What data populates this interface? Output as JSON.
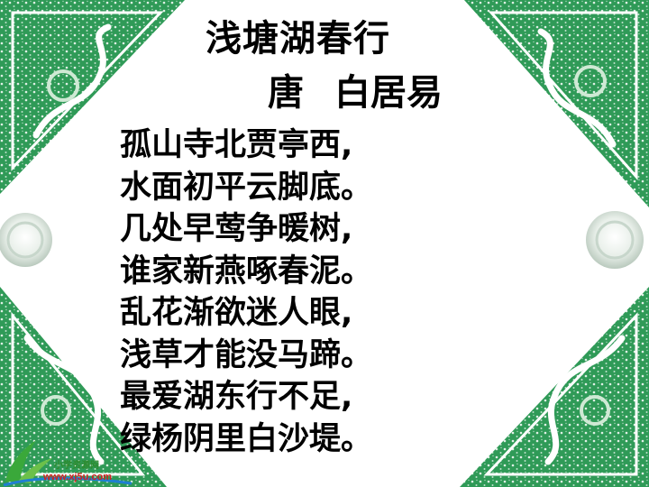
{
  "poem": {
    "title": "浅塘湖春行",
    "dynasty": "唐",
    "author": "白居易",
    "lines": [
      "孤山寺北贾亭西,",
      "水面初平云脚底。",
      "几处早莺争暖树,",
      "谁家新燕啄春泥。",
      "乱花渐欲迷人眼,",
      "浅草才能没马蹄。",
      "最爱湖东行不足,",
      "绿杨阴里白沙堤。"
    ]
  },
  "watermark": {
    "site_name": "小学资源网",
    "url": "www.xj5u.com"
  },
  "colors": {
    "ornament_green": "#2f9a57",
    "ornament_light": "#cfe9d4",
    "text": "#000000",
    "watermark_green": "#2e8b2e",
    "watermark_red": "#d02020"
  }
}
